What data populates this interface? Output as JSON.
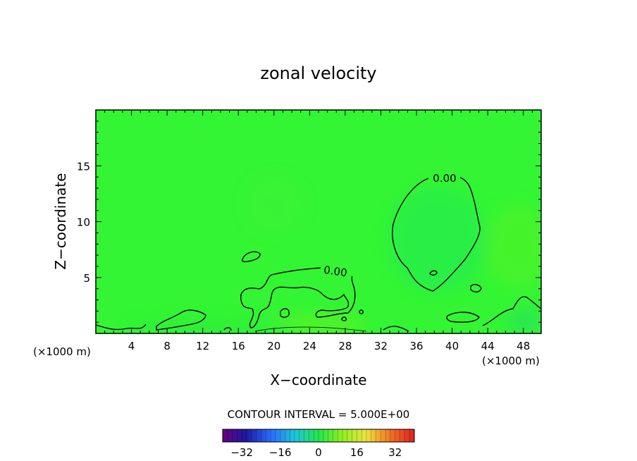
{
  "chart_data": {
    "type": "heatmap",
    "title": "zonal velocity",
    "xlabel": "X−coordinate",
    "ylabel": "Z−coordinate",
    "x_units_left": "(×1000 m)",
    "x_units_right": "(×1000 m)",
    "xlim": [
      0,
      50
    ],
    "ylim": [
      0,
      20
    ],
    "x_ticks": [
      4,
      8,
      12,
      16,
      20,
      24,
      28,
      32,
      36,
      40,
      44,
      48
    ],
    "y_ticks": [
      5,
      10,
      15
    ],
    "contour_interval_text": "CONTOUR INTERVAL = 5.000E+00",
    "contour_labels": [
      {
        "text": "0.00",
        "x": 38.0,
        "y": 13.8
      },
      {
        "text": "0.00",
        "x": 26.5,
        "y": 5.4
      }
    ],
    "colorbar": {
      "range": [
        -40,
        40
      ],
      "ticks": [
        -32,
        -16,
        0,
        16,
        32
      ]
    },
    "colors": {
      "field_base": "#33f533",
      "contour": "#000000"
    }
  }
}
